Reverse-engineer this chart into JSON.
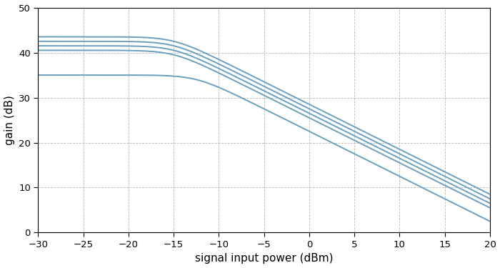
{
  "title": "",
  "xlabel": "signal input power (dBm)",
  "ylabel": "gain (dB)",
  "xlim": [
    -30,
    20
  ],
  "ylim": [
    0,
    50
  ],
  "xticks": [
    -30,
    -25,
    -20,
    -15,
    -10,
    -5,
    0,
    5,
    10,
    15,
    20
  ],
  "yticks": [
    0,
    10,
    20,
    30,
    40,
    50
  ],
  "line_color": "#6a9fc0",
  "background_color": "#ffffff",
  "grid_color": "#b0b0b0",
  "curve_params": [
    [
      43.5,
      10.0,
      2.5
    ],
    [
      42.5,
      10.0,
      2.5
    ],
    [
      41.5,
      10.0,
      2.5
    ],
    [
      40.5,
      10.0,
      2.5
    ],
    [
      35.0,
      8.0,
      2.5
    ]
  ]
}
